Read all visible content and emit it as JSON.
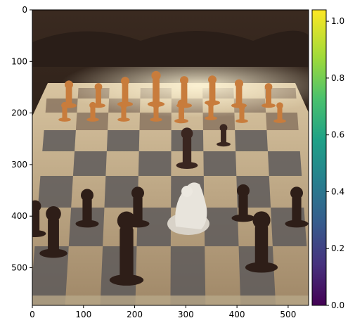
{
  "image": {
    "description_icon": "chess-scene-image",
    "x_ticks": [
      "0",
      "100",
      "200",
      "300",
      "400",
      "500"
    ],
    "y_ticks": [
      "0",
      "100",
      "200",
      "300",
      "400",
      "500"
    ],
    "x_tick_values": [
      0,
      100,
      200,
      300,
      400,
      500
    ],
    "y_tick_values": [
      0,
      100,
      200,
      300,
      400,
      500
    ],
    "xlim": [
      0,
      540
    ],
    "ylim": [
      0,
      573
    ]
  },
  "colorbar": {
    "ticks": [
      "0.0",
      "0.2",
      "0.4",
      "0.6",
      "0.8",
      "1.0"
    ],
    "tick_values": [
      0.0,
      0.2,
      0.4,
      0.6,
      0.8,
      1.0
    ],
    "range": [
      0,
      1.04
    ],
    "colormap": "viridis"
  }
}
